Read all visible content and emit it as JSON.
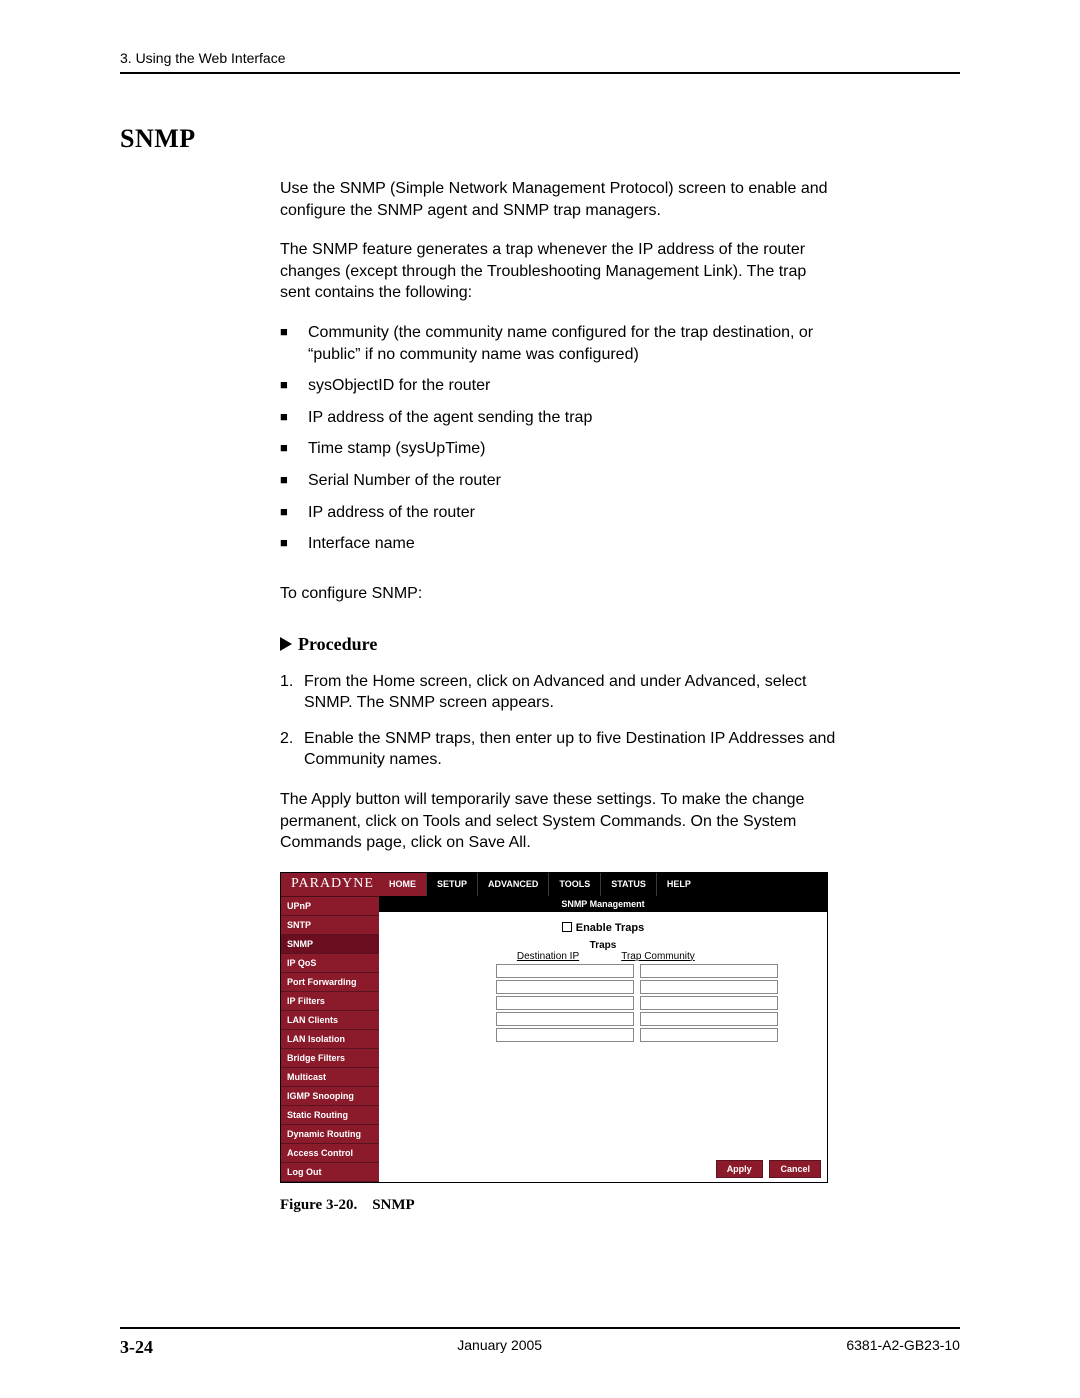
{
  "header": {
    "chapter": "3. Using the Web Interface"
  },
  "title": "SNMP",
  "intro1": "Use the SNMP (Simple Network Management Protocol) screen to enable and configure the SNMP agent and SNMP trap managers.",
  "intro2": "The SNMP feature generates a trap whenever the IP address of the router changes (except through the Troubleshooting Management Link). The trap sent contains the following:",
  "bullets": [
    "Community (the community name configured for the trap destination, or “public” if no community name was configured)",
    "sysObjectID for the router",
    "IP address of the agent sending the trap",
    "Time stamp (sysUpTime)",
    "Serial Number of the router",
    "IP address of the router",
    "Interface name"
  ],
  "lead": "To configure SNMP:",
  "procedure_label": "Procedure",
  "steps": [
    "From the Home screen, click on Advanced and under Advanced, select SNMP. The SNMP screen appears.",
    "Enable the SNMP traps, then enter up to five Destination IP Addresses and Community names."
  ],
  "apply_note": "The Apply button will temporarily save these settings. To make the change permanent, click on Tools and select System Commands. On the System Commands page, click on Save All.",
  "screenshot": {
    "brand": "PARADYNE",
    "tabs": [
      "HOME",
      "SETUP",
      "ADVANCED",
      "TOOLS",
      "STATUS",
      "HELP"
    ],
    "side_items": [
      "UPnP",
      "SNTP",
      "SNMP",
      "IP QoS",
      "Port Forwarding",
      "IP Filters",
      "LAN Clients",
      "LAN Isolation",
      "Bridge Filters",
      "Multicast",
      "IGMP Snooping",
      "Static Routing",
      "Dynamic Routing",
      "Access Control",
      "Log Out"
    ],
    "active_side": "SNMP",
    "content_title": "SNMP Management",
    "enable_label": "Enable Traps",
    "traps_header": "Traps",
    "col1": "Destination IP",
    "col2": "Trap Community",
    "rows": 5,
    "apply": "Apply",
    "cancel": "Cancel",
    "colors": {
      "maroon": "#8b1a2b",
      "black": "#000000",
      "white": "#ffffff"
    }
  },
  "figure_caption": "Figure 3-20. SNMP",
  "footer": {
    "page": "3-24",
    "date": "January 2005",
    "docnum": "6381-A2-GB23-10"
  }
}
